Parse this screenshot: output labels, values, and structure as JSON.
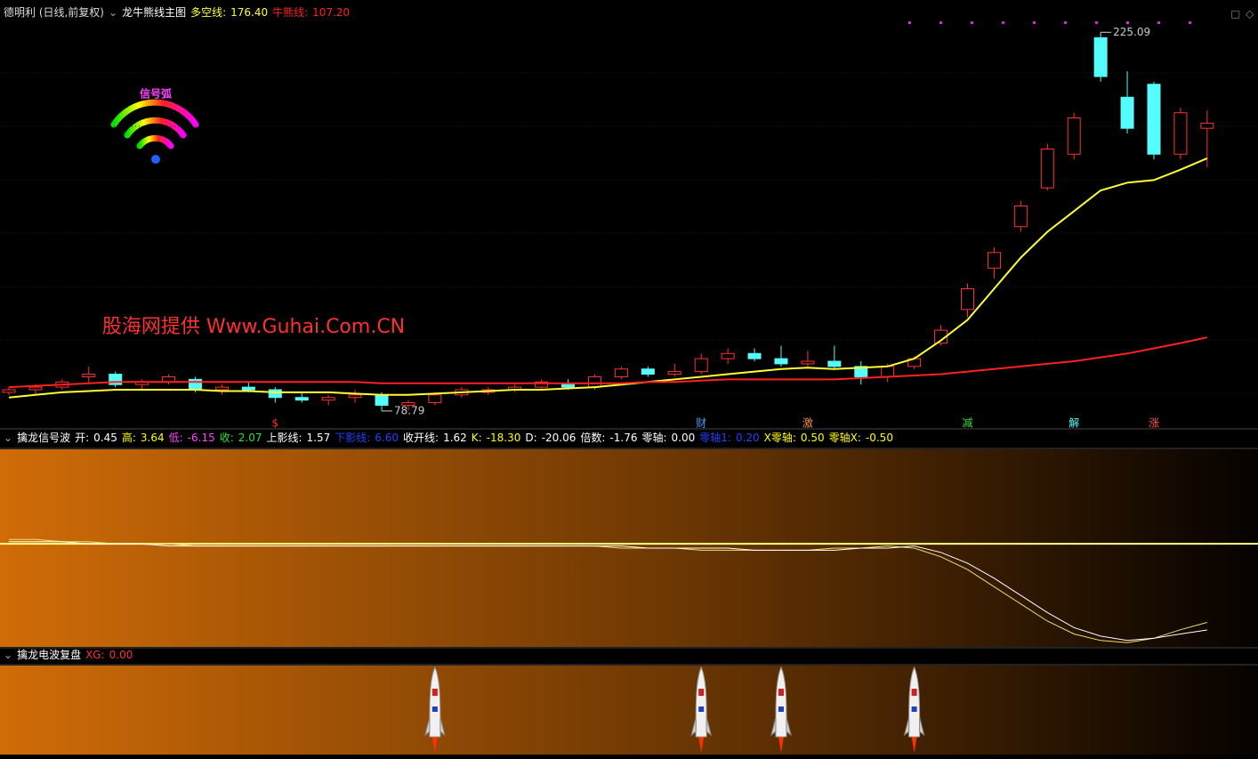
{
  "chart_data": [
    {
      "type": "candlestick",
      "subtitle": "德明利 (日线,前复权)",
      "title": "龙牛熊线主图",
      "icon_label": "信号弧",
      "watermark": "股海网提供 Www.Guhai.Com.CN",
      "ylim": [
        76,
        230
      ],
      "up_color": "#ff3232",
      "down_color": "#54fcfc",
      "open": [
        86,
        87,
        88,
        92,
        93,
        89,
        90,
        91,
        87,
        88,
        87,
        84,
        83,
        84,
        85,
        81,
        82,
        85,
        86,
        87,
        88,
        89,
        88,
        92,
        95,
        93,
        94,
        99,
        101,
        99,
        97,
        98,
        96,
        92,
        96,
        105,
        118,
        134,
        150,
        165,
        178,
        223,
        200,
        205,
        178,
        188
      ],
      "high": [
        88,
        89,
        91,
        96,
        94,
        91,
        93,
        92,
        89,
        90,
        88,
        86,
        85,
        87,
        86,
        83,
        86,
        88,
        88,
        89,
        91,
        91,
        93,
        96,
        96,
        97,
        101,
        103,
        103,
        104,
        102,
        104,
        98,
        97,
        100,
        112,
        128,
        142,
        160,
        182,
        194,
        225.09,
        210,
        206,
        196,
        195
      ],
      "low": [
        85,
        85,
        87,
        89,
        88,
        87,
        89,
        86,
        85,
        86,
        82,
        82,
        81,
        82,
        78.79,
        79,
        81,
        84,
        85,
        86,
        87,
        87,
        87,
        91,
        92,
        92,
        93,
        97,
        98,
        96,
        96,
        95,
        89,
        90,
        95,
        104,
        115,
        130,
        148,
        164,
        176,
        206,
        186,
        176,
        176,
        173
      ],
      "close": [
        87,
        88,
        90,
        93,
        89,
        90,
        92,
        87,
        88,
        87,
        84,
        83,
        84,
        85,
        81,
        82,
        85,
        87,
        87,
        88,
        90,
        88,
        92,
        95,
        93,
        94,
        99,
        101,
        99,
        97,
        98,
        96,
        92,
        96,
        99,
        110,
        126,
        140,
        158,
        180,
        192,
        208,
        188,
        178,
        194,
        190
      ],
      "series": [
        {
          "label": "多空线:",
          "value_label": "176.40",
          "color": "#ffff33",
          "values": [
            84,
            85,
            86,
            86.5,
            87,
            87,
            87,
            87,
            86.5,
            86.5,
            86,
            86,
            86,
            85.5,
            85,
            85,
            85.5,
            86,
            86.5,
            87,
            87,
            87.5,
            88,
            89,
            90,
            91,
            92,
            93,
            94,
            95,
            95.5,
            95,
            95.5,
            96,
            99,
            106,
            114,
            126,
            138,
            148,
            156,
            164,
            167,
            168,
            172,
            176.4
          ]
        },
        {
          "label": "牛熊线:",
          "value_label": "107.20",
          "color": "#ff2020",
          "values": [
            88,
            88.5,
            89,
            89.5,
            90,
            90,
            90,
            90,
            90,
            90,
            90,
            90,
            90,
            90,
            89.5,
            89.5,
            89.5,
            89.5,
            89.5,
            89.5,
            89.5,
            89.5,
            89.5,
            89.5,
            90,
            90,
            90.5,
            91,
            91,
            91,
            91,
            91,
            91.5,
            92,
            92.5,
            93,
            94,
            95,
            96,
            97,
            98,
            99.5,
            101,
            103,
            105,
            107.2
          ]
        }
      ],
      "annotations": [
        {
          "text": "$",
          "index": 10,
          "color": "#ff3030"
        },
        {
          "text": "财",
          "index": 26,
          "color": "#4aa0ff"
        },
        {
          "text": "激",
          "index": 30,
          "color": "#ff9040"
        },
        {
          "text": "减",
          "index": 36,
          "color": "#30e030"
        },
        {
          "text": "解",
          "index": 40,
          "color": "#54fcfc"
        },
        {
          "text": "涨",
          "index": 43,
          "color": "#ff5050"
        }
      ]
    },
    {
      "type": "line",
      "title": "擒龙信号波",
      "ylim": [
        -24,
        22
      ],
      "readouts": [
        {
          "label": "开:",
          "value_label": "0.45",
          "color": "#ffffff"
        },
        {
          "label": "高:",
          "value_label": "3.64",
          "color": "#ffff00"
        },
        {
          "label": "低:",
          "value_label": "-6.15",
          "color": "#ff40ff"
        },
        {
          "label": "收:",
          "value_label": "2.07",
          "color": "#30e030"
        },
        {
          "label": "上影线:",
          "value_label": "1.57",
          "color": "#ffffff"
        },
        {
          "label": "下影线:",
          "value_label": "6.60",
          "color": "#2040ff"
        },
        {
          "label": "收开线:",
          "value_label": "1.62",
          "color": "#ffffff"
        },
        {
          "label": "K:",
          "value_label": "-18.30",
          "color": "#ffff00"
        },
        {
          "label": "D:",
          "value_label": "-20.06",
          "color": "#ffffff"
        },
        {
          "label": "倍数:",
          "value_label": "-1.76",
          "color": "#ffffff"
        },
        {
          "label": "零轴:",
          "value_label": "0.00",
          "color": "#ffffff"
        },
        {
          "label": "零轴1:",
          "value_label": "0.20",
          "color": "#2040ff"
        },
        {
          "label": "X零轴:",
          "value_label": "0.50",
          "color": "#ffff00"
        },
        {
          "label": "零轴X:",
          "value_label": "-0.50",
          "color": "#ffff00"
        }
      ],
      "series": [
        {
          "color": "#f0e060",
          "values": [
            1,
            1,
            0.5,
            0.5,
            0,
            0,
            0,
            -0.5,
            -0.5,
            -0.5,
            -0.5,
            -0.5,
            -0.5,
            -0.5,
            -0.5,
            -0.5,
            -0.5,
            -0.5,
            -0.5,
            -0.5,
            -0.5,
            -0.5,
            -0.5,
            -1,
            -1,
            -1,
            -1.5,
            -1.5,
            -1.5,
            -1.5,
            -1.5,
            -1,
            -1,
            -0.5,
            -1,
            -3,
            -6,
            -10,
            -14,
            -18,
            -21,
            -22.5,
            -23,
            -22,
            -20,
            -18.3
          ]
        },
        {
          "color": "#ffffff",
          "values": [
            0.5,
            0.5,
            0.5,
            0,
            0,
            0,
            -0.5,
            -0.5,
            -0.5,
            -0.5,
            -0.5,
            -0.5,
            -0.5,
            -0.5,
            -0.5,
            -0.5,
            -0.5,
            -0.5,
            -0.5,
            -0.5,
            -0.5,
            -0.5,
            -0.5,
            -0.5,
            -1,
            -1,
            -1,
            -1,
            -1.5,
            -1.5,
            -1.5,
            -1.5,
            -1,
            -1,
            -0.5,
            -2,
            -4.5,
            -8,
            -12,
            -16,
            -19.5,
            -21.5,
            -22.5,
            -22,
            -21,
            -20.06
          ]
        }
      ]
    },
    {
      "type": "signal",
      "title": "擒龙电波复盘",
      "readouts": [
        {
          "label": "XG:",
          "value_label": "0.00",
          "color": "#ff3030"
        }
      ],
      "values": [
        0,
        0,
        0,
        0,
        0,
        0,
        0,
        0,
        0,
        0,
        0,
        0,
        0,
        0,
        0,
        0,
        1,
        0,
        0,
        0,
        0,
        0,
        0,
        0,
        0,
        0,
        1,
        0,
        0,
        1,
        0,
        0,
        0,
        0,
        1,
        0,
        0,
        0,
        0,
        0,
        0,
        0,
        0,
        0,
        0,
        0
      ]
    }
  ]
}
